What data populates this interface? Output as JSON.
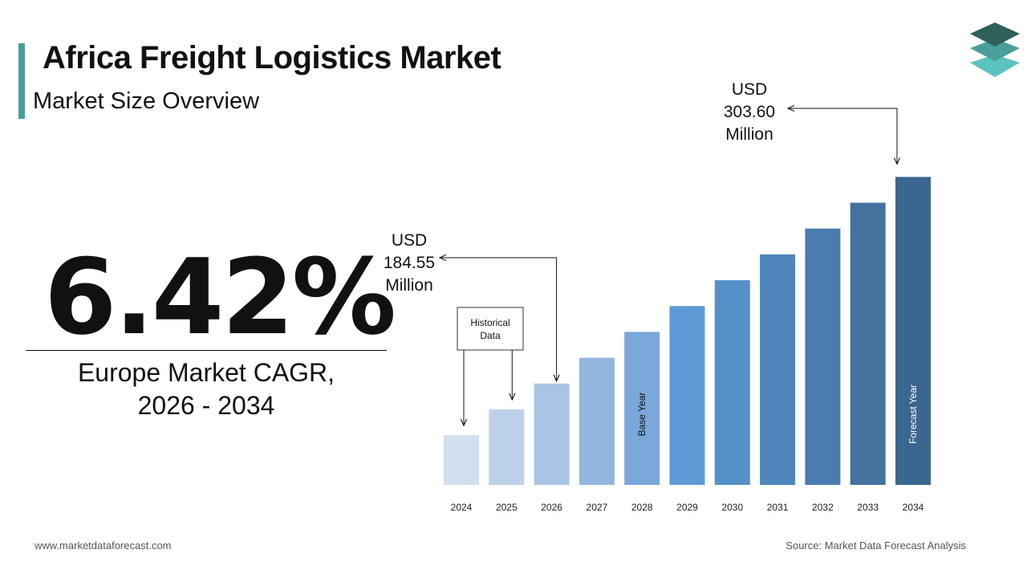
{
  "header": {
    "title": "Africa Freight Logistics Market",
    "subtitle": "Market Size Overview"
  },
  "logo": {
    "icon": "stacked-layers-icon",
    "colors": [
      "#2f5f5a",
      "#4a9e9a",
      "#5cc2bd"
    ]
  },
  "stat": {
    "value": "6.42%",
    "caption_line1": "Europe Market CAGR,",
    "caption_line2": "2026 - 2034"
  },
  "callouts": {
    "start": {
      "line1": "USD",
      "line2": "184.55",
      "line3": "Million"
    },
    "end": {
      "line1": "USD",
      "line2": "303.60",
      "line3": "Million"
    }
  },
  "footer": {
    "website": "www.marketdataforecast.com",
    "source": "Source: Market Data Forecast Analysis"
  },
  "chart_data": {
    "type": "bar",
    "categories": [
      "2024",
      "2025",
      "2026",
      "2027",
      "2028",
      "2029",
      "2030",
      "2031",
      "2032",
      "2033",
      "2034"
    ],
    "values": [
      25,
      38,
      51,
      64,
      77,
      90,
      103,
      116,
      129,
      142,
      155
    ],
    "ylim": [
      0,
      160
    ],
    "bar_labels": {
      "2028": "Base Year",
      "2034": "Forecast Year"
    },
    "annotation_box": "Historical Data",
    "colors": [
      "#d3deee",
      "#bdd1ea",
      "#a9c4e4",
      "#93b6df",
      "#7aa7da",
      "#5e9ad6",
      "#5590c8",
      "#4f85bb",
      "#4a7baf",
      "#43729f",
      "#3b6690"
    ]
  }
}
